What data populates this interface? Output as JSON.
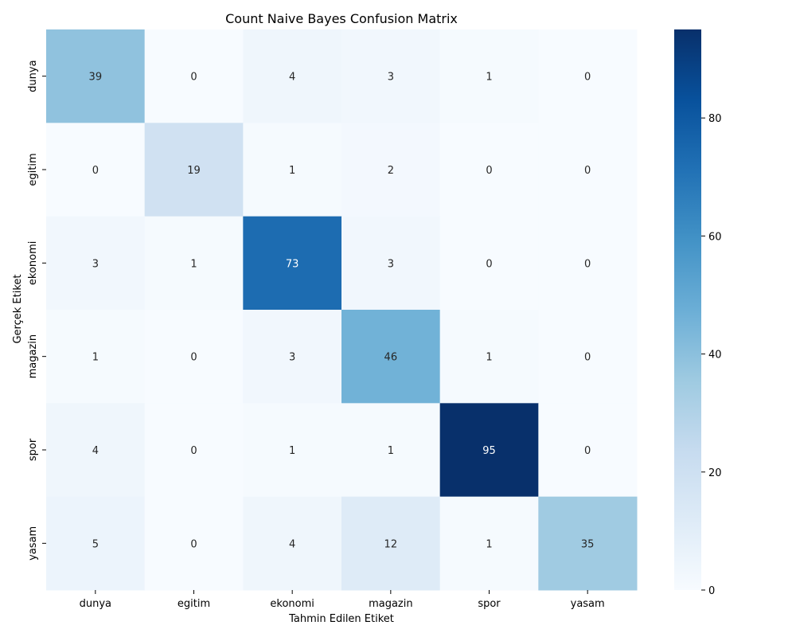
{
  "chart_data": {
    "type": "heatmap",
    "title": "Count Naive Bayes Confusion Matrix",
    "xlabel": "Tahmin Edilen Etiket",
    "ylabel": "Gerçek Etiket",
    "x_categories": [
      "dunya",
      "egitim",
      "ekonomi",
      "magazin",
      "spor",
      "yasam"
    ],
    "y_categories": [
      "dunya",
      "egitim",
      "ekonomi",
      "magazin",
      "spor",
      "yasam"
    ],
    "matrix": [
      [
        39,
        0,
        4,
        3,
        1,
        0
      ],
      [
        0,
        19,
        1,
        2,
        0,
        0
      ],
      [
        3,
        1,
        73,
        3,
        0,
        0
      ],
      [
        1,
        0,
        3,
        46,
        1,
        0
      ],
      [
        4,
        0,
        1,
        1,
        95,
        0
      ],
      [
        5,
        0,
        4,
        12,
        1,
        35
      ]
    ],
    "colorbar": {
      "colormap": "Blues",
      "vmin": 0,
      "vmax": 95,
      "ticks": [
        0,
        20,
        40,
        60,
        80
      ]
    },
    "annotated": true,
    "grid": false
  }
}
